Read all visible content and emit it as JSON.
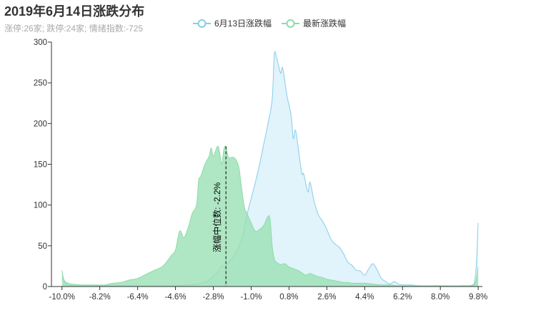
{
  "title": "2019年6月14日涨跌分布",
  "subtitle": "涨停:26家; 跌停:24家; 情绪指数:-725",
  "legend": [
    {
      "name": "6月13日涨跌幅",
      "color": "#87cde8",
      "fill": "#dff2fb"
    },
    {
      "name": "最新涨跌幅",
      "color": "#8ddcaa",
      "fill": "#9be0b5"
    }
  ],
  "median_label": "涨幅中位数: -2.2%",
  "chart_data": {
    "type": "area",
    "title": "2019年6月14日涨跌分布",
    "xlabel": "",
    "ylabel": "",
    "xlim": [
      -10.5,
      10.0
    ],
    "ylim": [
      0,
      300
    ],
    "x_ticks": [
      "-10.0%",
      "-8.2%",
      "-6.4%",
      "-4.6%",
      "-2.8%",
      "-1.0%",
      "0.8%",
      "2.6%",
      "4.4%",
      "6.2%",
      "8.0%",
      "9.8%"
    ],
    "y_ticks": [
      0,
      50,
      100,
      150,
      200,
      250,
      300
    ],
    "median": -2.2,
    "series": [
      {
        "name": "6月13日涨跌幅",
        "points": [
          [
            -10.0,
            12
          ],
          [
            -9.8,
            3
          ],
          [
            -9.5,
            1
          ],
          [
            -9.0,
            1
          ],
          [
            -8.5,
            1
          ],
          [
            -8.0,
            1
          ],
          [
            -7.5,
            1
          ],
          [
            -7.0,
            1
          ],
          [
            -6.5,
            1
          ],
          [
            -6.0,
            1
          ],
          [
            -5.5,
            1
          ],
          [
            -5.0,
            1
          ],
          [
            -4.5,
            1
          ],
          [
            -4.0,
            2
          ],
          [
            -3.6,
            3
          ],
          [
            -3.2,
            5
          ],
          [
            -3.0,
            8
          ],
          [
            -2.8,
            13
          ],
          [
            -2.6,
            18
          ],
          [
            -2.4,
            25
          ],
          [
            -2.2,
            26
          ],
          [
            -2.0,
            32
          ],
          [
            -1.8,
            38
          ],
          [
            -1.6,
            48
          ],
          [
            -1.4,
            62
          ],
          [
            -1.2,
            88
          ],
          [
            -1.0,
            108
          ],
          [
            -0.8,
            128
          ],
          [
            -0.6,
            150
          ],
          [
            -0.4,
            175
          ],
          [
            -0.2,
            200
          ],
          [
            0.0,
            230
          ],
          [
            0.1,
            284
          ],
          [
            0.2,
            282
          ],
          [
            0.4,
            262
          ],
          [
            0.5,
            268
          ],
          [
            0.7,
            235
          ],
          [
            0.9,
            210
          ],
          [
            1.0,
            182
          ],
          [
            1.1,
            192
          ],
          [
            1.2,
            178
          ],
          [
            1.4,
            140
          ],
          [
            1.5,
            138
          ],
          [
            1.7,
            116
          ],
          [
            1.8,
            128
          ],
          [
            2.0,
            104
          ],
          [
            2.2,
            88
          ],
          [
            2.4,
            80
          ],
          [
            2.6,
            70
          ],
          [
            2.8,
            58
          ],
          [
            3.0,
            52
          ],
          [
            3.2,
            48
          ],
          [
            3.4,
            40
          ],
          [
            3.6,
            30
          ],
          [
            3.8,
            26
          ],
          [
            4.0,
            20
          ],
          [
            4.2,
            19
          ],
          [
            4.4,
            14
          ],
          [
            4.6,
            22
          ],
          [
            4.8,
            28
          ],
          [
            5.0,
            20
          ],
          [
            5.2,
            10
          ],
          [
            5.4,
            6
          ],
          [
            5.6,
            3
          ],
          [
            5.8,
            6
          ],
          [
            6.0,
            3
          ],
          [
            6.2,
            2
          ],
          [
            6.6,
            2
          ],
          [
            7.0,
            1
          ],
          [
            8.0,
            1
          ],
          [
            9.0,
            1
          ],
          [
            9.6,
            3
          ],
          [
            9.8,
            78
          ]
        ]
      },
      {
        "name": "最新涨跌幅",
        "points": [
          [
            -10.0,
            20
          ],
          [
            -9.9,
            8
          ],
          [
            -9.7,
            4
          ],
          [
            -9.5,
            3
          ],
          [
            -9.0,
            2
          ],
          [
            -8.5,
            2
          ],
          [
            -8.0,
            2
          ],
          [
            -7.6,
            4
          ],
          [
            -7.2,
            5
          ],
          [
            -6.8,
            8
          ],
          [
            -6.4,
            10
          ],
          [
            -6.0,
            15
          ],
          [
            -5.6,
            20
          ],
          [
            -5.2,
            25
          ],
          [
            -4.8,
            38
          ],
          [
            -4.6,
            45
          ],
          [
            -4.4,
            68
          ],
          [
            -4.2,
            60
          ],
          [
            -4.0,
            72
          ],
          [
            -3.8,
            90
          ],
          [
            -3.6,
            100
          ],
          [
            -3.5,
            130
          ],
          [
            -3.4,
            135
          ],
          [
            -3.2,
            150
          ],
          [
            -3.0,
            160
          ],
          [
            -2.9,
            170
          ],
          [
            -2.8,
            160
          ],
          [
            -2.6,
            172
          ],
          [
            -2.5,
            165
          ],
          [
            -2.4,
            150
          ],
          [
            -2.3,
            168
          ],
          [
            -2.2,
            172
          ],
          [
            -2.1,
            160
          ],
          [
            -2.0,
            158
          ],
          [
            -1.8,
            158
          ],
          [
            -1.6,
            148
          ],
          [
            -1.5,
            130
          ],
          [
            -1.4,
            110
          ],
          [
            -1.3,
            95
          ],
          [
            -1.2,
            90
          ],
          [
            -1.0,
            78
          ],
          [
            -0.8,
            68
          ],
          [
            -0.6,
            70
          ],
          [
            -0.4,
            75
          ],
          [
            -0.2,
            86
          ],
          [
            -0.1,
            82
          ],
          [
            0.0,
            50
          ],
          [
            0.1,
            34
          ],
          [
            0.2,
            30
          ],
          [
            0.4,
            27
          ],
          [
            0.6,
            28
          ],
          [
            0.8,
            24
          ],
          [
            1.0,
            22
          ],
          [
            1.2,
            20
          ],
          [
            1.4,
            17
          ],
          [
            1.6,
            14
          ],
          [
            1.8,
            16
          ],
          [
            2.0,
            14
          ],
          [
            2.2,
            12
          ],
          [
            2.4,
            11
          ],
          [
            2.6,
            9
          ],
          [
            2.8,
            8
          ],
          [
            3.0,
            7
          ],
          [
            3.2,
            6
          ],
          [
            3.4,
            5
          ],
          [
            3.6,
            5
          ],
          [
            3.8,
            4
          ],
          [
            4.0,
            4
          ],
          [
            4.4,
            4
          ],
          [
            4.8,
            3
          ],
          [
            5.2,
            2
          ],
          [
            5.6,
            2
          ],
          [
            6.0,
            1
          ],
          [
            7.0,
            1
          ],
          [
            8.0,
            1
          ],
          [
            9.0,
            1
          ],
          [
            9.6,
            2
          ],
          [
            9.8,
            24
          ]
        ]
      }
    ]
  }
}
